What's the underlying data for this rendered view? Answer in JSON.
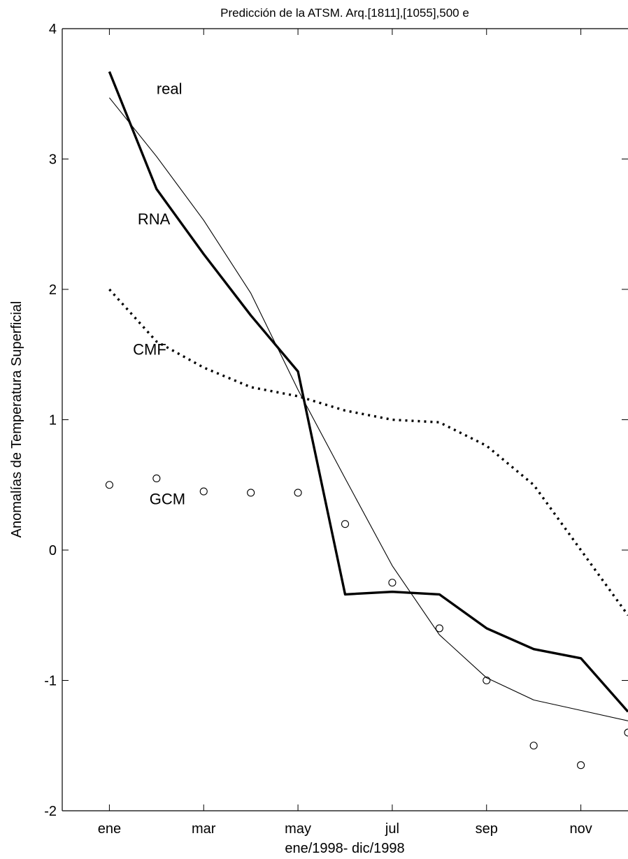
{
  "chart_data": {
    "type": "line",
    "title": "Predicción de la ATSM. Arq.[1811],[1055],500 e",
    "xlabel": "ene/1998- dic/1998",
    "ylabel": "Anomalías de Temperatura Superficial",
    "x_ticks": [
      1,
      3,
      5,
      7,
      9,
      11
    ],
    "x_tick_labels": [
      "ene",
      "mar",
      "may",
      "jul",
      "sep",
      "nov"
    ],
    "xlim": [
      0,
      12
    ],
    "ylim": [
      -2,
      4
    ],
    "y_ticks": [
      -2,
      -1,
      0,
      1,
      2,
      3,
      4
    ],
    "y_tick_labels": [
      "-2",
      "-1",
      "0",
      "1",
      "2",
      "3",
      "4"
    ],
    "grid": false,
    "series": [
      {
        "name": "real",
        "style": "thin-solid",
        "color": "#000000",
        "x": [
          1,
          2,
          3,
          4,
          5,
          6,
          7,
          8,
          9,
          10,
          11,
          12
        ],
        "values": [
          3.47,
          3.02,
          2.53,
          1.97,
          1.23,
          0.55,
          -0.12,
          -0.65,
          -0.98,
          -1.15,
          -1.23,
          -1.31
        ]
      },
      {
        "name": "RNA",
        "style": "thick-solid",
        "color": "#000000",
        "x": [
          1,
          2,
          3,
          4,
          5,
          6,
          7,
          8,
          9,
          10,
          11,
          12
        ],
        "values": [
          3.67,
          2.77,
          2.27,
          1.8,
          1.37,
          -0.34,
          -0.32,
          -0.34,
          -0.6,
          -0.76,
          -0.83,
          -1.24
        ]
      },
      {
        "name": "CMF",
        "style": "dotted",
        "color": "#000000",
        "x": [
          1,
          2,
          3,
          4,
          5,
          6,
          7,
          8,
          9,
          10,
          11,
          12
        ],
        "values": [
          2.0,
          1.6,
          1.4,
          1.25,
          1.18,
          1.07,
          1.0,
          0.98,
          0.8,
          0.5,
          0.0,
          -0.5
        ]
      },
      {
        "name": "GCM",
        "style": "open-circles",
        "color": "#000000",
        "x": [
          1,
          2,
          3,
          4,
          5,
          6,
          7,
          8,
          9,
          10,
          11,
          12
        ],
        "values": [
          0.5,
          0.55,
          0.45,
          0.44,
          0.44,
          0.2,
          -0.25,
          -0.6,
          -1.0,
          -1.5,
          -1.65,
          -1.4
        ]
      }
    ],
    "annotations": [
      {
        "text": "real",
        "x": 2.0,
        "y": 3.5
      },
      {
        "text": "RNA",
        "x": 1.6,
        "y": 2.5
      },
      {
        "text": "CMF",
        "x": 1.5,
        "y": 1.5
      },
      {
        "text": "GCM",
        "x": 1.85,
        "y": 0.35
      }
    ]
  }
}
